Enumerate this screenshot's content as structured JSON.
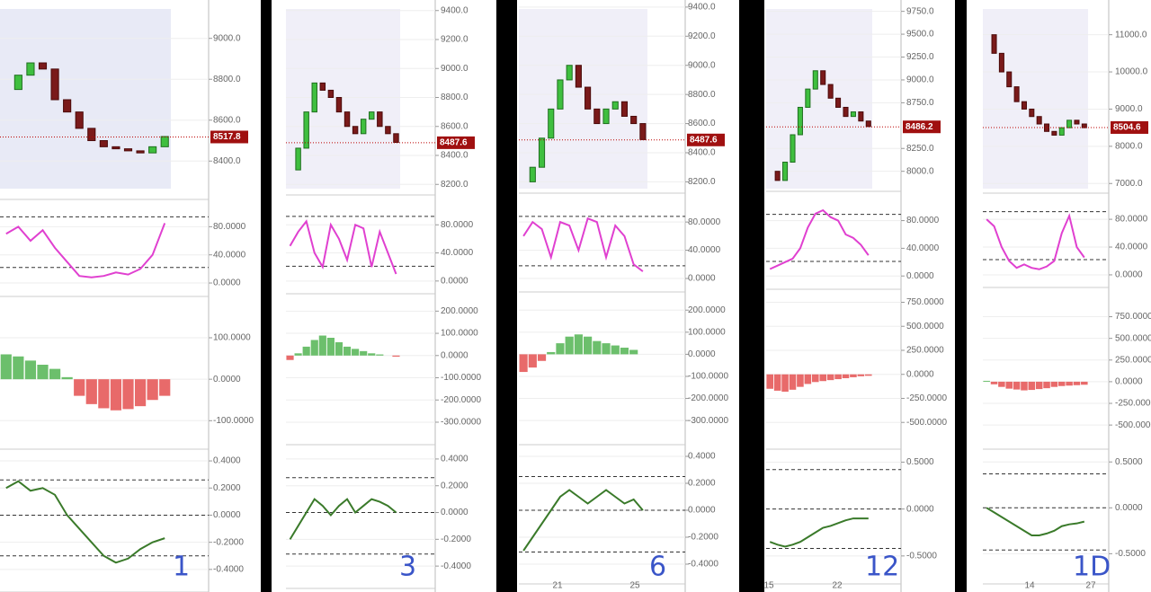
{
  "panels": [
    {
      "note": "1",
      "price": {
        "ylim": [
          8230,
          9170
        ],
        "yticks": [
          {
            "value": 9000,
            "label": "9000.0"
          },
          {
            "value": 8800,
            "label": "8800.0"
          },
          {
            "value": 8600,
            "label": "8600.0"
          },
          {
            "value": 8400,
            "label": "8400.0"
          }
        ],
        "tag": {
          "value": 8517.8,
          "label": "8517.8"
        },
        "closes": [
          8750,
          8820,
          8880,
          8850,
          8700,
          8640,
          8560,
          8500,
          8470,
          8460,
          8450,
          8440,
          8470,
          8520
        ]
      },
      "stoch": {
        "ylim": [
          -14,
          106
        ],
        "yticks": [
          {
            "value": 80,
            "label": "80.0000"
          },
          {
            "value": 40,
            "label": "40.0000"
          },
          {
            "value": 0,
            "label": "0.0000"
          }
        ],
        "levels": [
          94,
          22
        ],
        "values": [
          70,
          80,
          60,
          75,
          50,
          30,
          10,
          8,
          10,
          15,
          12,
          20,
          40,
          85
        ]
      },
      "macd": {
        "ylim": [
          -160,
          191
        ],
        "yticks": [
          {
            "value": 100,
            "label": "100.0000"
          },
          {
            "value": 0,
            "label": "0.0000"
          },
          {
            "value": -100,
            "label": "-100.0000"
          }
        ],
        "values": [
          60,
          55,
          45,
          35,
          25,
          5,
          -40,
          -60,
          -70,
          -75,
          -72,
          -65,
          -50,
          -40
        ]
      },
      "osc": {
        "ylim": [
          -0.54,
          0.46
        ],
        "yticks": [
          {
            "value": 0.4,
            "label": "0.4000"
          },
          {
            "value": 0.2,
            "label": "0.2000"
          },
          {
            "value": 0,
            "label": "0.0000"
          },
          {
            "value": -0.2,
            "label": "-0.2000"
          },
          {
            "value": -0.4,
            "label": "-0.4000"
          }
        ],
        "levels": [
          0.26,
          0,
          -0.3
        ],
        "values": [
          0.2,
          0.25,
          0.18,
          0.2,
          0.15,
          0.0,
          -0.1,
          -0.2,
          -0.3,
          -0.35,
          -0.32,
          -0.25,
          -0.2,
          -0.17
        ]
      },
      "xlabels": []
    },
    {
      "note": "3",
      "price": {
        "ylim": [
          8152,
          9448
        ],
        "yticks": [
          {
            "value": 9400,
            "label": "9400.0"
          },
          {
            "value": 9200,
            "label": "9200.0"
          },
          {
            "value": 9000,
            "label": "9000.0"
          },
          {
            "value": 8800,
            "label": "8800.0"
          },
          {
            "value": 8600,
            "label": "8600.0"
          },
          {
            "value": 8400,
            "label": "8400.0"
          },
          {
            "value": 8200,
            "label": "8200.0"
          }
        ],
        "tag": {
          "value": 8487.6,
          "label": "8487.6"
        },
        "closes": [
          8300,
          8450,
          8700,
          8900,
          8850,
          8800,
          8700,
          8600,
          8550,
          8650,
          8700,
          8600,
          8550,
          8490
        ]
      },
      "stoch": {
        "ylim": [
          -13,
          111
        ],
        "yticks": [
          {
            "value": 80,
            "label": "80.0000"
          },
          {
            "value": 40,
            "label": "40.0000"
          },
          {
            "value": 0,
            "label": "0.0000"
          }
        ],
        "levels": [
          92,
          21
        ],
        "values": [
          50,
          70,
          85,
          40,
          20,
          80,
          60,
          30,
          80,
          75,
          20,
          70,
          40,
          10
        ]
      },
      "macd": {
        "ylim": [
          -385,
          262
        ],
        "yticks": [
          {
            "value": 200,
            "label": "200.0000"
          },
          {
            "value": 100,
            "label": "100.0000"
          },
          {
            "value": 0,
            "label": "0.0000"
          },
          {
            "value": -100,
            "label": "-100.0000"
          },
          {
            "value": -200,
            "label": "-200.0000"
          },
          {
            "value": -300,
            "label": "-300.0000"
          }
        ],
        "values": [
          -20,
          10,
          40,
          70,
          90,
          80,
          60,
          40,
          30,
          20,
          10,
          5,
          0,
          -5
        ]
      },
      "osc": {
        "ylim": [
          -0.54,
          0.48
        ],
        "yticks": [
          {
            "value": 0.4,
            "label": "0.4000"
          },
          {
            "value": 0.2,
            "label": "0.2000"
          },
          {
            "value": 0,
            "label": "0.0000"
          },
          {
            "value": -0.2,
            "label": "-0.2000"
          },
          {
            "value": -0.4,
            "label": "-0.4000"
          }
        ],
        "levels": [
          0.26,
          0,
          -0.31
        ],
        "values": [
          -0.2,
          -0.1,
          0.0,
          0.1,
          0.05,
          -0.02,
          0.05,
          0.1,
          0.0,
          0.05,
          0.1,
          0.08,
          0.05,
          0.0
        ]
      },
      "xlabels": []
    },
    {
      "note": "6",
      "price": {
        "ylim": [
          8147,
          9424
        ],
        "yticks": [
          {
            "value": 9400,
            "label": "9400.0"
          },
          {
            "value": 9200,
            "label": "9200.0"
          },
          {
            "value": 9000,
            "label": "9000.0"
          },
          {
            "value": 8800,
            "label": "8800.0"
          },
          {
            "value": 8600,
            "label": "8600.0"
          },
          {
            "value": 8400,
            "label": "8400.0"
          },
          {
            "value": 8200,
            "label": "8200.0"
          }
        ],
        "tag": {
          "value": 8487.6,
          "label": "8487.6"
        },
        "closes": [
          8200,
          8300,
          8500,
          8700,
          8900,
          9000,
          8850,
          8700,
          8600,
          8700,
          8750,
          8650,
          8600,
          8490
        ]
      },
      "stoch": {
        "ylim": [
          -14,
          112
        ],
        "yticks": [
          {
            "value": 80,
            "label": "80.0000"
          },
          {
            "value": 40,
            "label": "40.0000"
          },
          {
            "value": 0,
            "label": "0.0000"
          }
        ],
        "levels": [
          88,
          18
        ],
        "values": [
          60,
          80,
          70,
          30,
          80,
          75,
          40,
          85,
          80,
          30,
          75,
          60,
          20,
          10
        ]
      },
      "macd": {
        "ylim": [
          -393,
          266
        ],
        "yticks": [
          {
            "value": 200,
            "label": "200.0000"
          },
          {
            "value": 100,
            "label": "100.0000"
          },
          {
            "value": 0,
            "label": "0.0000"
          },
          {
            "value": -100,
            "label": "-100.0000"
          },
          {
            "value": -200,
            "label": "-200.0000"
          },
          {
            "value": -300,
            "label": "-300.0000"
          }
        ],
        "values": [
          -80,
          -60,
          -30,
          10,
          50,
          80,
          90,
          80,
          60,
          50,
          40,
          30,
          20,
          0
        ]
      },
      "osc": {
        "ylim": [
          -0.52,
          0.46
        ],
        "yticks": [
          {
            "value": 0.4,
            "label": "0.4000"
          },
          {
            "value": 0.2,
            "label": "0.2000"
          },
          {
            "value": 0,
            "label": "0.0000"
          },
          {
            "value": -0.2,
            "label": "-0.2000"
          },
          {
            "value": -0.4,
            "label": "-0.4000"
          }
        ],
        "levels": [
          0.25,
          0,
          -0.31
        ],
        "values": [
          -0.3,
          -0.2,
          -0.1,
          0.0,
          0.1,
          0.15,
          0.1,
          0.05,
          0.1,
          0.15,
          0.1,
          0.05,
          0.08,
          0.0
        ]
      },
      "xlabels": [
        "21",
        "25"
      ]
    },
    {
      "note": "12",
      "price": {
        "ylim": [
          7820,
          9835
        ],
        "yticks": [
          {
            "value": 9750,
            "label": "9750.0"
          },
          {
            "value": 9500,
            "label": "9500.0"
          },
          {
            "value": 9250,
            "label": "9250.0"
          },
          {
            "value": 9000,
            "label": "9000.0"
          },
          {
            "value": 8750,
            "label": "8750.0"
          },
          {
            "value": 8250,
            "label": "8250.0"
          },
          {
            "value": 8000,
            "label": "8000.0"
          }
        ],
        "tag": {
          "value": 8486.2,
          "label": "8486.2"
        },
        "closes": [
          8000,
          7900,
          8100,
          8400,
          8700,
          8900,
          9100,
          8950,
          8800,
          8700,
          8600,
          8650,
          8550,
          8490
        ]
      },
      "stoch": {
        "ylim": [
          -14,
          108
        ],
        "yticks": [
          {
            "value": 80,
            "label": "80.0000"
          },
          {
            "value": 40,
            "label": "40.0000"
          },
          {
            "value": 0,
            "label": "0.0000"
          }
        ],
        "levels": [
          89,
          21
        ],
        "values": [
          10,
          15,
          20,
          25,
          40,
          70,
          90,
          95,
          85,
          80,
          60,
          55,
          45,
          30
        ]
      },
      "macd": {
        "ylim": [
          -741,
          848
        ],
        "yticks": [
          {
            "value": 750,
            "label": "750.0000"
          },
          {
            "value": 500,
            "label": "500.0000"
          },
          {
            "value": 250,
            "label": "250.0000"
          },
          {
            "value": 0,
            "label": "0.0000"
          },
          {
            "value": -250,
            "label": "-250.0000"
          },
          {
            "value": -500,
            "label": "-500.0000"
          }
        ],
        "values": [
          -150,
          -170,
          -180,
          -160,
          -130,
          -100,
          -80,
          -70,
          -60,
          -50,
          -40,
          -30,
          -20,
          -15
        ]
      },
      "osc": {
        "ylim": [
          -0.76,
          0.6
        ],
        "yticks": [
          {
            "value": 0.5,
            "label": "0.5000"
          },
          {
            "value": 0,
            "label": "0.0000"
          },
          {
            "value": -0.5,
            "label": "-0.5000"
          }
        ],
        "levels": [
          0.42,
          0,
          -0.42
        ],
        "values": [
          -0.35,
          -0.38,
          -0.4,
          -0.38,
          -0.35,
          -0.3,
          -0.25,
          -0.2,
          -0.18,
          -0.15,
          -0.12,
          -0.1,
          -0.1,
          -0.1
        ]
      },
      "xlabels": [
        "15",
        "22"
      ]
    },
    {
      "note": "1D",
      "price": {
        "ylim": [
          6837,
          11837
        ],
        "yticks": [
          {
            "value": 11000,
            "label": "11000.0"
          },
          {
            "value": 10000,
            "label": "10000.0"
          },
          {
            "value": 9000,
            "label": "9000.0"
          },
          {
            "value": 8000,
            "label": "8000.0"
          },
          {
            "value": 7000,
            "label": "7000.0"
          }
        ],
        "tag": {
          "value": 8504.6,
          "label": "8504.6"
        },
        "closes": [
          11000,
          10500,
          10000,
          9600,
          9200,
          9000,
          8800,
          8600,
          8400,
          8300,
          8500,
          8700,
          8600,
          8500
        ]
      },
      "stoch": {
        "ylim": [
          -13,
          106
        ],
        "yticks": [
          {
            "value": 80,
            "label": "80.0000"
          },
          {
            "value": 40,
            "label": "40.0000"
          },
          {
            "value": 0,
            "label": "0.0000"
          }
        ],
        "levels": [
          91,
          22
        ],
        "values": [
          80,
          70,
          40,
          20,
          10,
          15,
          10,
          8,
          12,
          20,
          60,
          85,
          40,
          25
        ]
      },
      "macd": {
        "ylim": [
          -737,
          1046
        ],
        "yticks": [
          {
            "value": 750,
            "label": "750.0000"
          },
          {
            "value": 500,
            "label": "500.0000"
          },
          {
            "value": 250,
            "label": "250.0000"
          },
          {
            "value": 0,
            "label": "0.0000"
          },
          {
            "value": -250,
            "label": "-250.0000"
          },
          {
            "value": -500,
            "label": "-500.0000"
          }
        ],
        "values": [
          10,
          -30,
          -60,
          -80,
          -90,
          -100,
          -95,
          -85,
          -75,
          -60,
          -50,
          -45,
          -40,
          -35
        ]
      },
      "osc": {
        "ylim": [
          -0.79,
          0.6
        ],
        "yticks": [
          {
            "value": 0.5,
            "label": "0.5000"
          },
          {
            "value": 0,
            "label": "0.0000"
          },
          {
            "value": -0.5,
            "label": "-0.5000"
          }
        ],
        "levels": [
          0.37,
          0,
          -0.46
        ],
        "values": [
          0.0,
          -0.05,
          -0.1,
          -0.15,
          -0.2,
          -0.25,
          -0.3,
          -0.3,
          -0.28,
          -0.25,
          -0.2,
          -0.18,
          -0.17,
          -0.15
        ]
      },
      "xlabels": [
        "14",
        "27"
      ]
    }
  ]
}
